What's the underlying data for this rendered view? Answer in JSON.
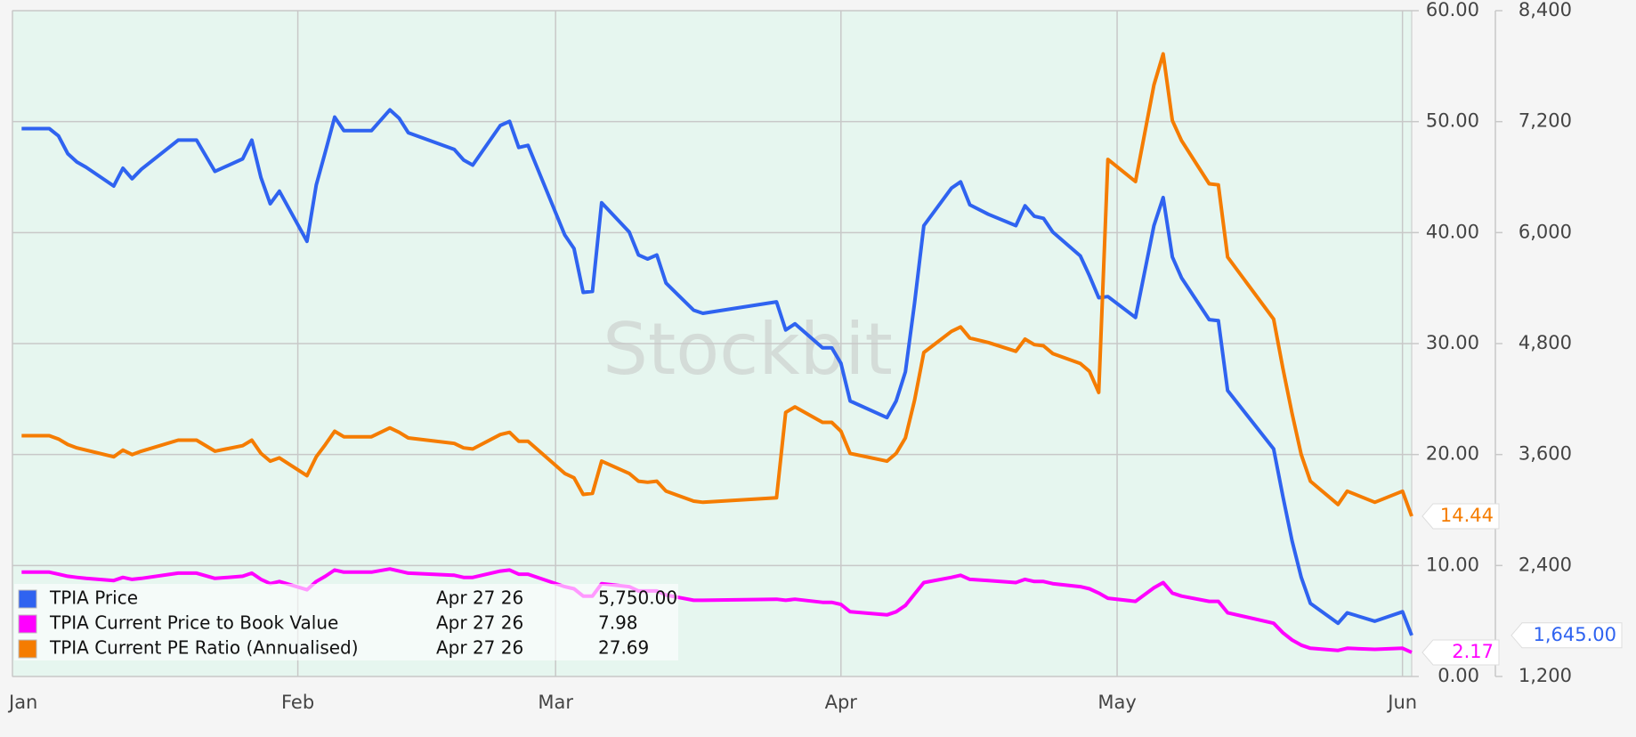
{
  "chart_data": {
    "type": "line",
    "watermark": "Stockbit",
    "x": [
      1,
      4,
      5,
      6,
      7,
      8,
      11,
      12,
      13,
      14,
      18,
      20,
      22,
      25,
      26,
      27,
      28,
      29,
      32,
      33,
      34,
      35,
      36,
      39,
      41,
      42,
      43,
      48,
      49,
      50,
      53,
      54,
      55,
      56,
      60,
      61,
      62,
      63,
      64,
      67,
      68,
      69,
      70,
      71,
      74,
      75,
      83,
      84,
      85,
      88,
      89,
      90,
      91,
      95,
      96,
      97,
      98,
      99,
      102,
      103,
      104,
      106,
      109,
      110,
      111,
      112,
      113,
      116,
      117,
      118,
      119,
      122,
      124,
      125,
      126,
      127,
      130,
      131,
      132,
      137,
      138,
      139,
      140,
      141,
      144,
      145,
      148,
      151,
      152
    ],
    "xlim": [
      0,
      152
    ],
    "xticks": [
      {
        "value": 0,
        "label": "Jan"
      },
      {
        "value": 31,
        "label": "Feb"
      },
      {
        "value": 59,
        "label": "Mar"
      },
      {
        "value": 90,
        "label": "Apr"
      },
      {
        "value": 120,
        "label": "May"
      },
      {
        "value": 151,
        "label": "Jun"
      }
    ],
    "ylim": [
      0,
      60
    ],
    "yticks": [
      {
        "value": 0,
        "label": "0.00"
      },
      {
        "value": 10,
        "label": "10.00"
      },
      {
        "value": 20,
        "label": "20.00"
      },
      {
        "value": 30,
        "label": "30.00"
      },
      {
        "value": 40,
        "label": "40.00"
      },
      {
        "value": 50,
        "label": "50.00"
      },
      {
        "value": 60,
        "label": "60.00"
      }
    ],
    "y2lim": [
      1200,
      8400
    ],
    "y2ticks": [
      {
        "value": 1200,
        "label": "1,200"
      },
      {
        "value": 2400,
        "label": "2,400"
      },
      {
        "value": 3600,
        "label": "3,600"
      },
      {
        "value": 4800,
        "label": "4,800"
      },
      {
        "value": 6000,
        "label": "6,000"
      },
      {
        "value": 7200,
        "label": "7,200"
      },
      {
        "value": 8400,
        "label": "8,400"
      }
    ],
    "grid": true,
    "series": [
      {
        "name": "TPIA Price",
        "color": "#2f63f0",
        "axis": "y2",
        "legend_date": "Apr 27 26",
        "legend_value": {
          "value": 5750,
          "label": "5,750.00"
        },
        "end_label": {
          "value": 1645,
          "label": "1,645.00"
        },
        "values": [
          7125,
          7125,
          7046,
          6854,
          6764,
          6707,
          6504,
          6696,
          6583,
          6685,
          7000,
          7000,
          6662,
          6797,
          7000,
          6594,
          6312,
          6448,
          5906,
          6515,
          6876,
          7249,
          7102,
          7102,
          7328,
          7237,
          7080,
          6899,
          6786,
          6730,
          7158,
          7204,
          6921,
          6944,
          5974,
          5827,
          5353,
          5364,
          6323,
          6007,
          5759,
          5714,
          5759,
          5454,
          5161,
          5127,
          5251,
          4947,
          5014,
          4755,
          4755,
          4586,
          4179,
          3999,
          4179,
          4495,
          5240,
          6075,
          6481,
          6549,
          6301,
          6199,
          6075,
          6290,
          6177,
          6154,
          6007,
          5748,
          5533,
          5296,
          5308,
          5082,
          6075,
          6380,
          5737,
          5511,
          5059,
          5048,
          4292,
          3660,
          3152,
          2667,
          2272,
          1990,
          1776,
          1888,
          1798,
          1900,
          1645
        ]
      },
      {
        "name": "TPIA Current Price to Book Value",
        "color": "#ff00ff",
        "legend_date": "Apr 27 26",
        "legend_value": 7.98,
        "end_label": 2.17,
        "values": [
          9.4,
          9.4,
          9.22,
          9.03,
          8.93,
          8.84,
          8.65,
          8.93,
          8.75,
          8.84,
          9.31,
          9.31,
          8.84,
          9.03,
          9.31,
          8.75,
          8.37,
          8.56,
          7.81,
          8.56,
          9.03,
          9.59,
          9.4,
          9.4,
          9.69,
          9.5,
          9.31,
          9.12,
          8.93,
          8.93,
          9.5,
          9.59,
          9.22,
          9.22,
          8.09,
          7.9,
          7.24,
          7.24,
          8.37,
          8.09,
          7.71,
          7.71,
          7.71,
          7.34,
          6.87,
          6.87,
          6.96,
          6.87,
          6.96,
          6.68,
          6.68,
          6.49,
          5.83,
          5.55,
          5.83,
          6.4,
          7.43,
          8.46,
          8.93,
          9.12,
          8.75,
          8.65,
          8.46,
          8.75,
          8.56,
          8.56,
          8.37,
          8.09,
          7.9,
          7.52,
          7.05,
          6.77,
          7.99,
          8.46,
          7.52,
          7.24,
          6.77,
          6.77,
          5.74,
          4.8,
          3.95,
          3.29,
          2.82,
          2.54,
          2.35,
          2.54,
          2.45,
          2.54,
          2.17
        ]
      },
      {
        "name": "TPIA Current PE Ratio (Annualised)",
        "color": "#f57c00",
        "legend_date": "Apr 27 26",
        "legend_value": 27.69,
        "end_label": 14.44,
        "values": [
          21.7,
          21.7,
          21.4,
          20.9,
          20.6,
          20.4,
          19.8,
          20.4,
          20.0,
          20.3,
          21.3,
          21.3,
          20.3,
          20.8,
          21.3,
          20.1,
          19.4,
          19.7,
          18.1,
          19.8,
          20.9,
          22.1,
          21.6,
          21.6,
          22.4,
          22.0,
          21.5,
          21.0,
          20.6,
          20.5,
          21.8,
          22.0,
          21.2,
          21.2,
          18.3,
          17.9,
          16.4,
          16.5,
          19.4,
          18.3,
          17.6,
          17.5,
          17.6,
          16.7,
          15.8,
          15.7,
          16.1,
          23.8,
          24.3,
          22.9,
          22.9,
          22.1,
          20.1,
          19.4,
          20.1,
          21.5,
          24.9,
          29.2,
          31.1,
          31.5,
          30.5,
          30.1,
          29.3,
          30.4,
          29.9,
          29.8,
          29.1,
          28.2,
          27.5,
          25.6,
          46.6,
          44.6,
          53.3,
          56.1,
          50.1,
          48.3,
          44.4,
          44.3,
          37.8,
          32.2,
          27.8,
          23.7,
          20.0,
          17.6,
          15.5,
          16.7,
          15.7,
          16.7,
          14.44
        ]
      }
    ]
  }
}
